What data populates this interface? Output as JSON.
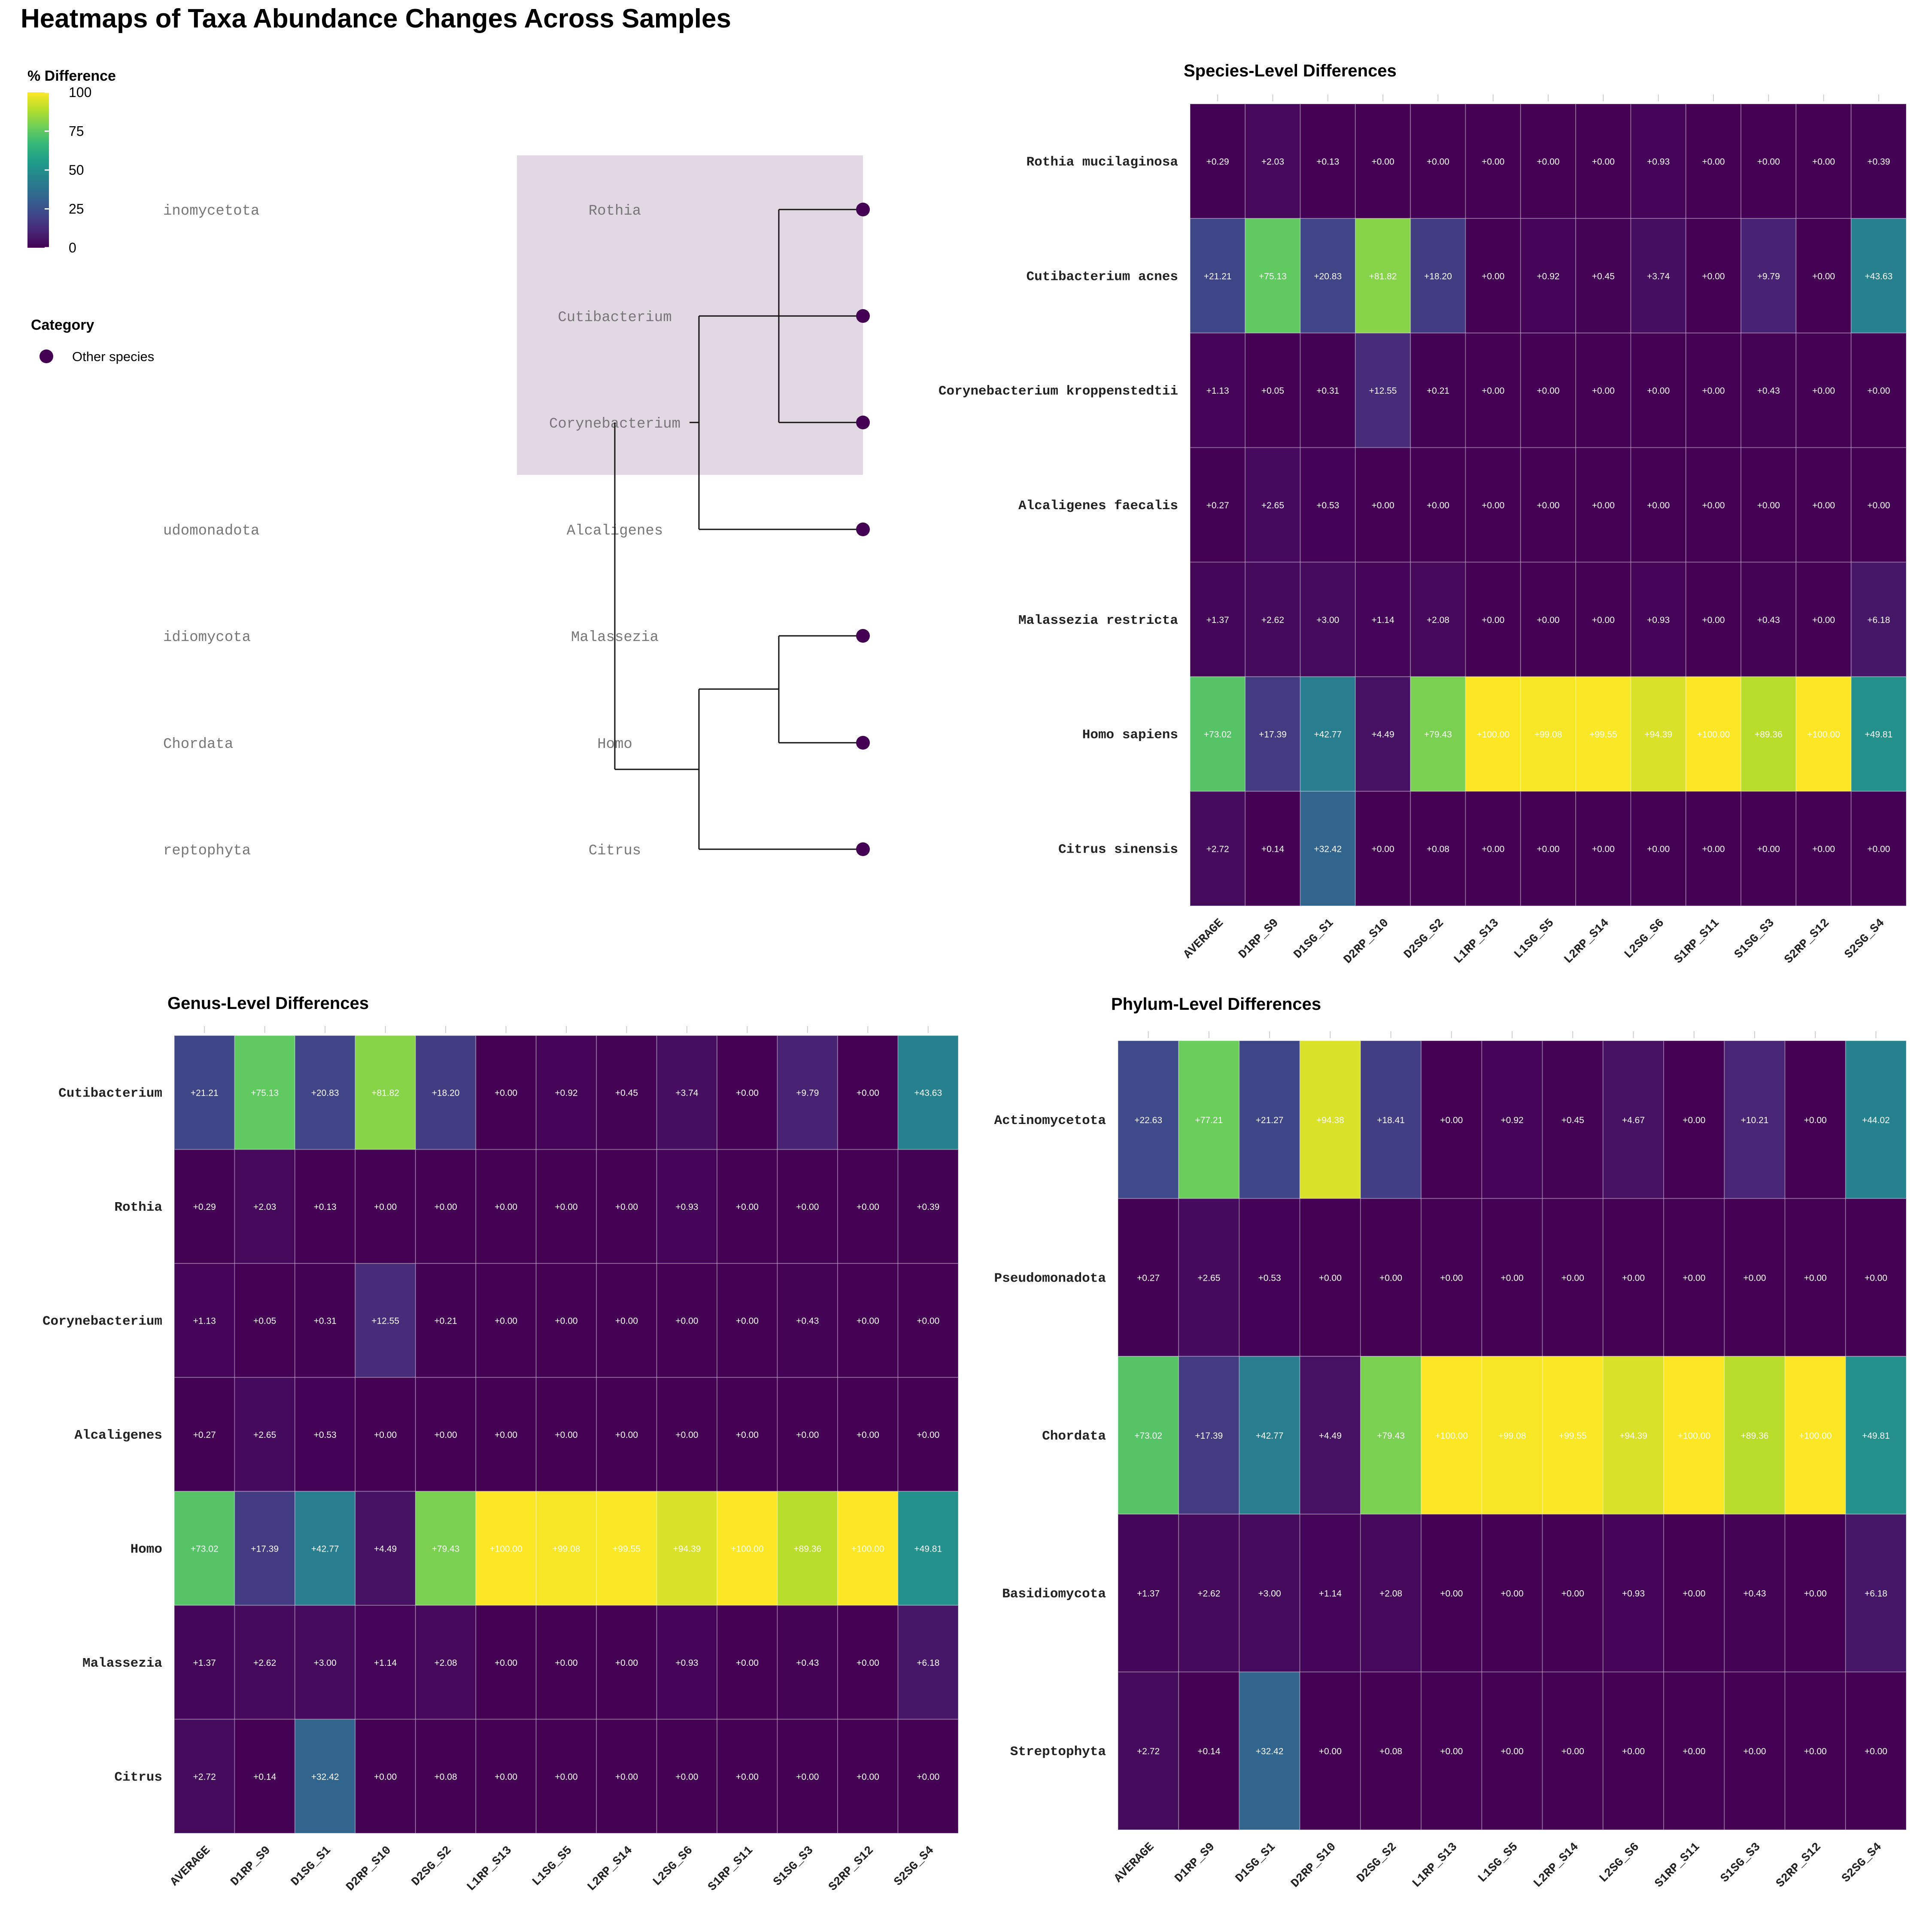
{
  "title": "Heatmaps of Taxa Abundance Changes Across Samples",
  "legend": {
    "colorbar_title": "% Difference",
    "colorbar_ticks": [
      "100",
      "75",
      "50",
      "25",
      "0"
    ],
    "category_title": "Category",
    "category_items": [
      {
        "label": "Other species",
        "color": "#440154"
      }
    ]
  },
  "colors": {
    "viridis_stops": [
      "#440154",
      "#482878",
      "#3e4989",
      "#31688e",
      "#26828e",
      "#1f9e89",
      "#35b779",
      "#6ece58",
      "#b5de2b",
      "#fde725"
    ],
    "tree_highlight": "#e2d8e4",
    "tree_tip": "#440154",
    "tree_label": "#777777",
    "cell_text": "#ffffff",
    "grid": "#cccccc"
  },
  "tree": {
    "phylum_labels": [
      "inomycetota",
      "udomonadota",
      "idiomycota",
      "Chordata",
      "reptophyta"
    ],
    "genus_labels": [
      "Rothia",
      "Cutibacterium",
      "Corynebacterium",
      "Alcaligenes",
      "Malassezia",
      "Homo",
      "Citrus"
    ]
  },
  "chart_data": [
    {
      "type": "heatmap",
      "title": "Species-Level Differences",
      "columns": [
        "AVERAGE",
        "D1RP_S9",
        "D1SG_S1",
        "D2RP_S10",
        "D2SG_S2",
        "L1RP_S13",
        "L1SG_S5",
        "L2RP_S14",
        "L2SG_S6",
        "S1RP_S11",
        "S1SG_S3",
        "S2RP_S12",
        "S2SG_S4"
      ],
      "rows": [
        "Rothia mucilaginosa",
        "Cutibacterium acnes",
        "Corynebacterium kroppenstedtii",
        "Alcaligenes faecalis",
        "Malassezia restricta",
        "Homo sapiens",
        "Citrus sinensis"
      ],
      "values": [
        [
          0.29,
          2.03,
          0.13,
          0.0,
          0.0,
          0.0,
          0.0,
          0.0,
          0.93,
          0.0,
          0.0,
          0.0,
          0.39
        ],
        [
          21.21,
          75.13,
          20.83,
          81.82,
          18.2,
          0.0,
          0.92,
          0.45,
          3.74,
          0.0,
          9.79,
          0.0,
          43.63
        ],
        [
          1.13,
          0.05,
          0.31,
          12.55,
          0.21,
          0.0,
          0.0,
          0.0,
          0.0,
          0.0,
          0.43,
          0.0,
          0.0
        ],
        [
          0.27,
          2.65,
          0.53,
          0.0,
          0.0,
          0.0,
          0.0,
          0.0,
          0.0,
          0.0,
          0.0,
          0.0,
          0.0
        ],
        [
          1.37,
          2.62,
          3.0,
          1.14,
          2.08,
          0.0,
          0.0,
          0.0,
          0.93,
          0.0,
          0.43,
          0.0,
          6.18
        ],
        [
          73.02,
          17.39,
          42.77,
          4.49,
          79.43,
          100.0,
          99.08,
          99.55,
          94.39,
          100.0,
          89.36,
          100.0,
          49.81
        ],
        [
          2.72,
          0.14,
          32.42,
          0.0,
          0.08,
          0.0,
          0.0,
          0.0,
          0.0,
          0.0,
          0.0,
          0.0,
          0.0
        ]
      ],
      "value_range": [
        0,
        100
      ]
    },
    {
      "type": "heatmap",
      "title": "Genus-Level Differences",
      "columns": [
        "AVERAGE",
        "D1RP_S9",
        "D1SG_S1",
        "D2RP_S10",
        "D2SG_S2",
        "L1RP_S13",
        "L1SG_S5",
        "L2RP_S14",
        "L2SG_S6",
        "S1RP_S11",
        "S1SG_S3",
        "S2RP_S12",
        "S2SG_S4"
      ],
      "rows": [
        "Cutibacterium",
        "Rothia",
        "Corynebacterium",
        "Alcaligenes",
        "Homo",
        "Malassezia",
        "Citrus"
      ],
      "values": [
        [
          21.21,
          75.13,
          20.83,
          81.82,
          18.2,
          0.0,
          0.92,
          0.45,
          3.74,
          0.0,
          9.79,
          0.0,
          43.63
        ],
        [
          0.29,
          2.03,
          0.13,
          0.0,
          0.0,
          0.0,
          0.0,
          0.0,
          0.93,
          0.0,
          0.0,
          0.0,
          0.39
        ],
        [
          1.13,
          0.05,
          0.31,
          12.55,
          0.21,
          0.0,
          0.0,
          0.0,
          0.0,
          0.0,
          0.43,
          0.0,
          0.0
        ],
        [
          0.27,
          2.65,
          0.53,
          0.0,
          0.0,
          0.0,
          0.0,
          0.0,
          0.0,
          0.0,
          0.0,
          0.0,
          0.0
        ],
        [
          73.02,
          17.39,
          42.77,
          4.49,
          79.43,
          100.0,
          99.08,
          99.55,
          94.39,
          100.0,
          89.36,
          100.0,
          49.81
        ],
        [
          1.37,
          2.62,
          3.0,
          1.14,
          2.08,
          0.0,
          0.0,
          0.0,
          0.93,
          0.0,
          0.43,
          0.0,
          6.18
        ],
        [
          2.72,
          0.14,
          32.42,
          0.0,
          0.08,
          0.0,
          0.0,
          0.0,
          0.0,
          0.0,
          0.0,
          0.0,
          0.0
        ]
      ],
      "value_range": [
        0,
        100
      ]
    },
    {
      "type": "heatmap",
      "title": "Phylum-Level Differences",
      "columns": [
        "AVERAGE",
        "D1RP_S9",
        "D1SG_S1",
        "D2RP_S10",
        "D2SG_S2",
        "L1RP_S13",
        "L1SG_S5",
        "L2RP_S14",
        "L2SG_S6",
        "S1RP_S11",
        "S1SG_S3",
        "S2RP_S12",
        "S2SG_S4"
      ],
      "rows": [
        "Actinomycetota",
        "Pseudomonadota",
        "Chordata",
        "Basidiomycota",
        "Streptophyta"
      ],
      "values": [
        [
          22.63,
          77.21,
          21.27,
          94.38,
          18.41,
          0.0,
          0.92,
          0.45,
          4.67,
          0.0,
          10.21,
          0.0,
          44.02
        ],
        [
          0.27,
          2.65,
          0.53,
          0.0,
          0.0,
          0.0,
          0.0,
          0.0,
          0.0,
          0.0,
          0.0,
          0.0,
          0.0
        ],
        [
          73.02,
          17.39,
          42.77,
          4.49,
          79.43,
          100.0,
          99.08,
          99.55,
          94.39,
          100.0,
          89.36,
          100.0,
          49.81
        ],
        [
          1.37,
          2.62,
          3.0,
          1.14,
          2.08,
          0.0,
          0.0,
          0.0,
          0.93,
          0.0,
          0.43,
          0.0,
          6.18
        ],
        [
          2.72,
          0.14,
          32.42,
          0.0,
          0.08,
          0.0,
          0.0,
          0.0,
          0.0,
          0.0,
          0.0,
          0.0,
          0.0
        ]
      ],
      "value_range": [
        0,
        100
      ]
    }
  ]
}
